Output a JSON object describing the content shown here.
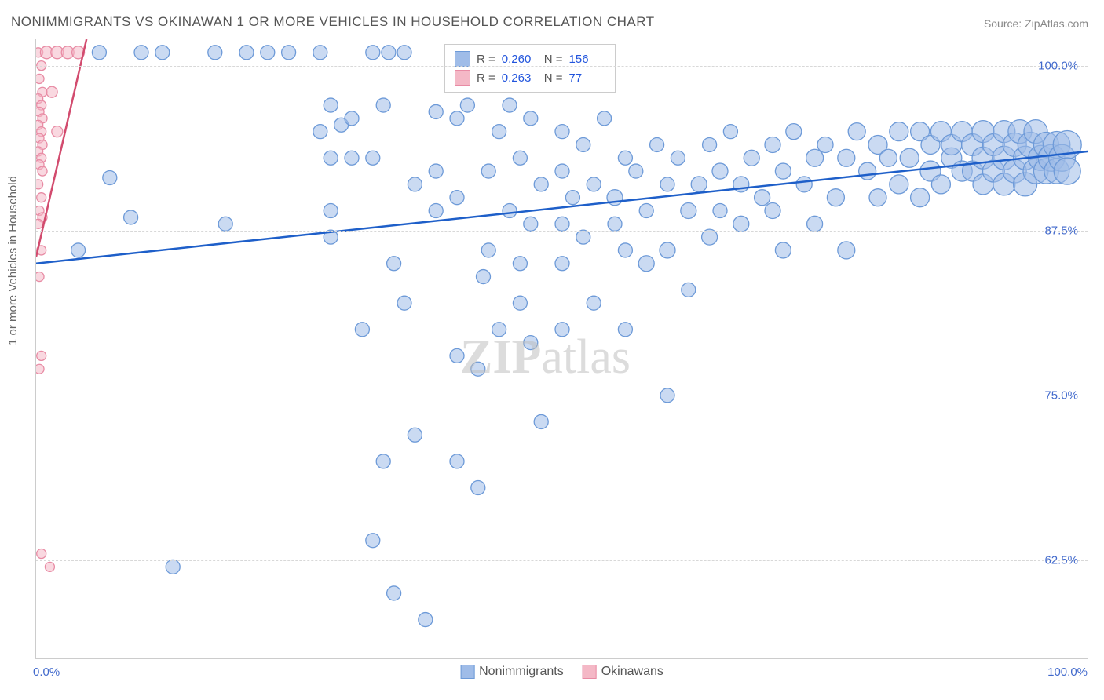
{
  "title": "NONIMMIGRANTS VS OKINAWAN 1 OR MORE VEHICLES IN HOUSEHOLD CORRELATION CHART",
  "source_label": "Source: ",
  "source_value": "ZipAtlas.com",
  "ylabel": "1 or more Vehicles in Household",
  "watermark_bold": "ZIP",
  "watermark_rest": "atlas",
  "chart": {
    "type": "scatter",
    "xlim": [
      0,
      100
    ],
    "ylim": [
      55,
      102
    ],
    "ytick_labels": [
      "100.0%",
      "87.5%",
      "75.0%",
      "62.5%"
    ],
    "ytick_values": [
      100,
      87.5,
      75,
      62.5
    ],
    "xtick_labels_left": "0.0%",
    "xtick_labels_right": "100.0%",
    "grid_color": "#d8d8d8",
    "background_color": "#ffffff",
    "axis_color": "#cccccc",
    "tick_text_color": "#4169cc",
    "series": [
      {
        "name": "Nonimmigrants",
        "fill_color": "#9fbce8",
        "stroke_color": "#6d9ad8",
        "trend_color": "#1e5fc9",
        "trend": {
          "y_at_x0": 85.0,
          "y_at_x100": 93.5
        },
        "stats": {
          "R": "0.260",
          "N": "156"
        },
        "points": [
          {
            "x": 6,
            "y": 101,
            "r": 9
          },
          {
            "x": 10,
            "y": 101,
            "r": 9
          },
          {
            "x": 12,
            "y": 101,
            "r": 9
          },
          {
            "x": 17,
            "y": 101,
            "r": 9
          },
          {
            "x": 20,
            "y": 101,
            "r": 9
          },
          {
            "x": 22,
            "y": 101,
            "r": 9
          },
          {
            "x": 24,
            "y": 101,
            "r": 9
          },
          {
            "x": 27,
            "y": 101,
            "r": 9
          },
          {
            "x": 32,
            "y": 101,
            "r": 9
          },
          {
            "x": 33.5,
            "y": 101,
            "r": 9
          },
          {
            "x": 35,
            "y": 101,
            "r": 9
          },
          {
            "x": 4,
            "y": 86,
            "r": 9
          },
          {
            "x": 7,
            "y": 91.5,
            "r": 9
          },
          {
            "x": 9,
            "y": 88.5,
            "r": 9
          },
          {
            "x": 13,
            "y": 62,
            "r": 9
          },
          {
            "x": 18,
            "y": 88,
            "r": 9
          },
          {
            "x": 27,
            "y": 95,
            "r": 9
          },
          {
            "x": 28,
            "y": 97,
            "r": 9
          },
          {
            "x": 28,
            "y": 93,
            "r": 9
          },
          {
            "x": 29,
            "y": 95.5,
            "r": 9
          },
          {
            "x": 28,
            "y": 89,
            "r": 9
          },
          {
            "x": 28,
            "y": 87,
            "r": 9
          },
          {
            "x": 30,
            "y": 96,
            "r": 9
          },
          {
            "x": 30,
            "y": 93,
            "r": 9
          },
          {
            "x": 31,
            "y": 80,
            "r": 9
          },
          {
            "x": 33,
            "y": 97,
            "r": 9
          },
          {
            "x": 32,
            "y": 93,
            "r": 9
          },
          {
            "x": 32,
            "y": 64,
            "r": 9
          },
          {
            "x": 33,
            "y": 70,
            "r": 9
          },
          {
            "x": 34,
            "y": 60,
            "r": 9
          },
          {
            "x": 34,
            "y": 85,
            "r": 9
          },
          {
            "x": 35,
            "y": 82,
            "r": 9
          },
          {
            "x": 36,
            "y": 91,
            "r": 9
          },
          {
            "x": 36,
            "y": 72,
            "r": 9
          },
          {
            "x": 37,
            "y": 58,
            "r": 9
          },
          {
            "x": 38,
            "y": 96.5,
            "r": 9
          },
          {
            "x": 38,
            "y": 92,
            "r": 9
          },
          {
            "x": 38,
            "y": 89,
            "r": 9
          },
          {
            "x": 40,
            "y": 96,
            "r": 9
          },
          {
            "x": 40,
            "y": 90,
            "r": 9
          },
          {
            "x": 40,
            "y": 78,
            "r": 9
          },
          {
            "x": 40,
            "y": 70,
            "r": 9
          },
          {
            "x": 41,
            "y": 97,
            "r": 9
          },
          {
            "x": 42.5,
            "y": 84,
            "r": 9
          },
          {
            "x": 42,
            "y": 77,
            "r": 9
          },
          {
            "x": 42,
            "y": 68,
            "r": 9
          },
          {
            "x": 43,
            "y": 92,
            "r": 9
          },
          {
            "x": 43,
            "y": 86,
            "r": 9
          },
          {
            "x": 44,
            "y": 80,
            "r": 9
          },
          {
            "x": 44,
            "y": 95,
            "r": 9
          },
          {
            "x": 45,
            "y": 97,
            "r": 9
          },
          {
            "x": 45,
            "y": 89,
            "r": 9
          },
          {
            "x": 46,
            "y": 93,
            "r": 9
          },
          {
            "x": 46,
            "y": 85,
            "r": 9
          },
          {
            "x": 46,
            "y": 82,
            "r": 9
          },
          {
            "x": 47,
            "y": 96,
            "r": 9
          },
          {
            "x": 47,
            "y": 88,
            "r": 9
          },
          {
            "x": 47,
            "y": 79,
            "r": 9
          },
          {
            "x": 48,
            "y": 91,
            "r": 9
          },
          {
            "x": 48,
            "y": 73,
            "r": 9
          },
          {
            "x": 50,
            "y": 95,
            "r": 9
          },
          {
            "x": 50,
            "y": 92,
            "r": 9
          },
          {
            "x": 50,
            "y": 88,
            "r": 9
          },
          {
            "x": 50,
            "y": 85,
            "r": 9
          },
          {
            "x": 50,
            "y": 80,
            "r": 9
          },
          {
            "x": 51,
            "y": 90,
            "r": 9
          },
          {
            "x": 52,
            "y": 94,
            "r": 9
          },
          {
            "x": 52,
            "y": 87,
            "r": 9
          },
          {
            "x": 53,
            "y": 91,
            "r": 9
          },
          {
            "x": 53,
            "y": 82,
            "r": 9
          },
          {
            "x": 54,
            "y": 96,
            "r": 9
          },
          {
            "x": 55,
            "y": 90,
            "r": 10
          },
          {
            "x": 55,
            "y": 88,
            "r": 9
          },
          {
            "x": 56,
            "y": 93,
            "r": 9
          },
          {
            "x": 56,
            "y": 86,
            "r": 9
          },
          {
            "x": 56,
            "y": 80,
            "r": 9
          },
          {
            "x": 57,
            "y": 92,
            "r": 9
          },
          {
            "x": 58,
            "y": 89,
            "r": 9
          },
          {
            "x": 58,
            "y": 85,
            "r": 10
          },
          {
            "x": 59,
            "y": 94,
            "r": 9
          },
          {
            "x": 60,
            "y": 91,
            "r": 9
          },
          {
            "x": 60,
            "y": 86,
            "r": 10
          },
          {
            "x": 60,
            "y": 75,
            "r": 9
          },
          {
            "x": 61,
            "y": 93,
            "r": 9
          },
          {
            "x": 62,
            "y": 89,
            "r": 10
          },
          {
            "x": 62,
            "y": 83,
            "r": 9
          },
          {
            "x": 63,
            "y": 91,
            "r": 10
          },
          {
            "x": 64,
            "y": 94,
            "r": 9
          },
          {
            "x": 64,
            "y": 87,
            "r": 10
          },
          {
            "x": 65,
            "y": 92,
            "r": 10
          },
          {
            "x": 65,
            "y": 89,
            "r": 9
          },
          {
            "x": 66,
            "y": 95,
            "r": 9
          },
          {
            "x": 67,
            "y": 91,
            "r": 10
          },
          {
            "x": 67,
            "y": 88,
            "r": 10
          },
          {
            "x": 68,
            "y": 93,
            "r": 10
          },
          {
            "x": 69,
            "y": 90,
            "r": 10
          },
          {
            "x": 70,
            "y": 94,
            "r": 10
          },
          {
            "x": 70,
            "y": 89,
            "r": 10
          },
          {
            "x": 71,
            "y": 92,
            "r": 10
          },
          {
            "x": 71,
            "y": 86,
            "r": 10
          },
          {
            "x": 72,
            "y": 95,
            "r": 10
          },
          {
            "x": 73,
            "y": 91,
            "r": 10
          },
          {
            "x": 74,
            "y": 93,
            "r": 11
          },
          {
            "x": 74,
            "y": 88,
            "r": 10
          },
          {
            "x": 75,
            "y": 94,
            "r": 10
          },
          {
            "x": 76,
            "y": 90,
            "r": 11
          },
          {
            "x": 77,
            "y": 93,
            "r": 11
          },
          {
            "x": 77,
            "y": 86,
            "r": 11
          },
          {
            "x": 78,
            "y": 95,
            "r": 11
          },
          {
            "x": 79,
            "y": 92,
            "r": 11
          },
          {
            "x": 80,
            "y": 94,
            "r": 12
          },
          {
            "x": 80,
            "y": 90,
            "r": 11
          },
          {
            "x": 81,
            "y": 93,
            "r": 11
          },
          {
            "x": 82,
            "y": 95,
            "r": 12
          },
          {
            "x": 82,
            "y": 91,
            "r": 12
          },
          {
            "x": 83,
            "y": 93,
            "r": 12
          },
          {
            "x": 84,
            "y": 95,
            "r": 12
          },
          {
            "x": 84,
            "y": 90,
            "r": 12
          },
          {
            "x": 85,
            "y": 94,
            "r": 12
          },
          {
            "x": 85,
            "y": 92,
            "r": 13
          },
          {
            "x": 86,
            "y": 95,
            "r": 13
          },
          {
            "x": 86,
            "y": 91,
            "r": 12
          },
          {
            "x": 87,
            "y": 93,
            "r": 13
          },
          {
            "x": 87,
            "y": 94,
            "r": 13
          },
          {
            "x": 88,
            "y": 95,
            "r": 13
          },
          {
            "x": 88,
            "y": 92,
            "r": 13
          },
          {
            "x": 89,
            "y": 94,
            "r": 14
          },
          {
            "x": 89,
            "y": 92,
            "r": 13
          },
          {
            "x": 90,
            "y": 95,
            "r": 14
          },
          {
            "x": 90,
            "y": 93,
            "r": 14
          },
          {
            "x": 90,
            "y": 91,
            "r": 13
          },
          {
            "x": 91,
            "y": 94,
            "r": 14
          },
          {
            "x": 91,
            "y": 92,
            "r": 14
          },
          {
            "x": 92,
            "y": 95,
            "r": 14
          },
          {
            "x": 92,
            "y": 93,
            "r": 15
          },
          {
            "x": 92,
            "y": 91,
            "r": 14
          },
          {
            "x": 93,
            "y": 94,
            "r": 15
          },
          {
            "x": 93,
            "y": 92,
            "r": 15
          },
          {
            "x": 93.5,
            "y": 95,
            "r": 15
          },
          {
            "x": 94,
            "y": 93,
            "r": 15
          },
          {
            "x": 94,
            "y": 91,
            "r": 15
          },
          {
            "x": 94.5,
            "y": 94,
            "r": 16
          },
          {
            "x": 95,
            "y": 92,
            "r": 16
          },
          {
            "x": 95,
            "y": 95,
            "r": 15
          },
          {
            "x": 95.5,
            "y": 93,
            "r": 16
          },
          {
            "x": 96,
            "y": 94,
            "r": 16
          },
          {
            "x": 96,
            "y": 92,
            "r": 16
          },
          {
            "x": 96.5,
            "y": 93,
            "r": 17
          },
          {
            "x": 97,
            "y": 94,
            "r": 17
          },
          {
            "x": 97,
            "y": 92,
            "r": 16
          },
          {
            "x": 97.5,
            "y": 93,
            "r": 17
          },
          {
            "x": 98,
            "y": 94,
            "r": 18
          },
          {
            "x": 98,
            "y": 92,
            "r": 17
          }
        ]
      },
      {
        "name": "Okinawans",
        "fill_color": "#f4b8c6",
        "stroke_color": "#e88ba4",
        "trend_color": "#d24b6e",
        "trend": {
          "y_at_x0": 85.5,
          "y_at_x100": 430
        },
        "stats": {
          "R": "0.263",
          "N": "77"
        },
        "points": [
          {
            "x": 0.2,
            "y": 101,
            "r": 6
          },
          {
            "x": 0.5,
            "y": 100,
            "r": 6
          },
          {
            "x": 0.3,
            "y": 99,
            "r": 6
          },
          {
            "x": 0.6,
            "y": 98,
            "r": 6
          },
          {
            "x": 0.2,
            "y": 97.5,
            "r": 6
          },
          {
            "x": 0.5,
            "y": 97,
            "r": 6
          },
          {
            "x": 0.3,
            "y": 96.5,
            "r": 6
          },
          {
            "x": 0.6,
            "y": 96,
            "r": 6
          },
          {
            "x": 0.2,
            "y": 95.5,
            "r": 6
          },
          {
            "x": 0.5,
            "y": 95,
            "r": 6
          },
          {
            "x": 0.3,
            "y": 94.5,
            "r": 6
          },
          {
            "x": 0.6,
            "y": 94,
            "r": 6
          },
          {
            "x": 0.2,
            "y": 93.5,
            "r": 6
          },
          {
            "x": 0.5,
            "y": 93,
            "r": 6
          },
          {
            "x": 0.3,
            "y": 92.5,
            "r": 6
          },
          {
            "x": 0.6,
            "y": 92,
            "r": 6
          },
          {
            "x": 0.2,
            "y": 91,
            "r": 6
          },
          {
            "x": 0.5,
            "y": 90,
            "r": 6
          },
          {
            "x": 0.3,
            "y": 89,
            "r": 6
          },
          {
            "x": 0.6,
            "y": 88.5,
            "r": 6
          },
          {
            "x": 0.2,
            "y": 88,
            "r": 6
          },
          {
            "x": 0.5,
            "y": 86,
            "r": 6
          },
          {
            "x": 0.3,
            "y": 84,
            "r": 6
          },
          {
            "x": 0.5,
            "y": 78,
            "r": 6
          },
          {
            "x": 0.3,
            "y": 77,
            "r": 6
          },
          {
            "x": 0.5,
            "y": 63,
            "r": 6
          },
          {
            "x": 1.3,
            "y": 62,
            "r": 6
          },
          {
            "x": 1,
            "y": 101,
            "r": 8
          },
          {
            "x": 2,
            "y": 101,
            "r": 8
          },
          {
            "x": 3,
            "y": 101,
            "r": 8
          },
          {
            "x": 4,
            "y": 101,
            "r": 8
          },
          {
            "x": 1.5,
            "y": 98,
            "r": 7
          },
          {
            "x": 2,
            "y": 95,
            "r": 7
          }
        ]
      }
    ]
  },
  "bottom_legend": {
    "series1_label": "Nonimmigrants",
    "series2_label": "Okinawans"
  }
}
